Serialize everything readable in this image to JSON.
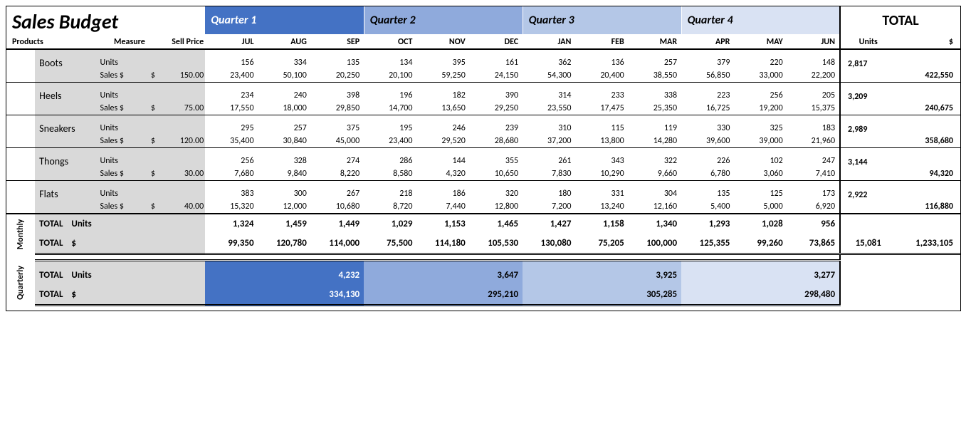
{
  "title": "Sales Budget",
  "headers": {
    "products": "Products",
    "measure": "Measure",
    "sellPrice": "Sell Price",
    "total": "TOTAL",
    "units": "Units",
    "dollar": "$"
  },
  "measures": {
    "units": "Units",
    "sales": "Sales $"
  },
  "quarters": [
    {
      "label": "Quarter 1",
      "bg": "#4472c4",
      "fg": "#ffffff"
    },
    {
      "label": "Quarter 2",
      "bg": "#8faadc",
      "fg": "#000000"
    },
    {
      "label": "Quarter 3",
      "bg": "#b4c7e7",
      "fg": "#000000"
    },
    {
      "label": "Quarter 4",
      "bg": "#d9e2f3",
      "fg": "#000000"
    }
  ],
  "months": [
    "JUL",
    "AUG",
    "SEP",
    "OCT",
    "NOV",
    "DEC",
    "JAN",
    "FEB",
    "MAR",
    "APR",
    "MAY",
    "JUN"
  ],
  "products": [
    {
      "name": "Boots",
      "price": "150.00",
      "units": [
        "156",
        "334",
        "135",
        "134",
        "395",
        "161",
        "362",
        "136",
        "257",
        "379",
        "220",
        "148"
      ],
      "sales": [
        "23,400",
        "50,100",
        "20,250",
        "20,100",
        "59,250",
        "24,150",
        "54,300",
        "20,400",
        "38,550",
        "56,850",
        "33,000",
        "22,200"
      ],
      "totUnits": "2,817",
      "totSales": "422,550"
    },
    {
      "name": "Heels",
      "price": "75.00",
      "units": [
        "234",
        "240",
        "398",
        "196",
        "182",
        "390",
        "314",
        "233",
        "338",
        "223",
        "256",
        "205"
      ],
      "sales": [
        "17,550",
        "18,000",
        "29,850",
        "14,700",
        "13,650",
        "29,250",
        "23,550",
        "17,475",
        "25,350",
        "16,725",
        "19,200",
        "15,375"
      ],
      "totUnits": "3,209",
      "totSales": "240,675"
    },
    {
      "name": "Sneakers",
      "price": "120.00",
      "units": [
        "295",
        "257",
        "375",
        "195",
        "246",
        "239",
        "310",
        "115",
        "119",
        "330",
        "325",
        "183"
      ],
      "sales": [
        "35,400",
        "30,840",
        "45,000",
        "23,400",
        "29,520",
        "28,680",
        "37,200",
        "13,800",
        "14,280",
        "39,600",
        "39,000",
        "21,960"
      ],
      "totUnits": "2,989",
      "totSales": "358,680"
    },
    {
      "name": "Thongs",
      "price": "30.00",
      "units": [
        "256",
        "328",
        "274",
        "286",
        "144",
        "355",
        "261",
        "343",
        "322",
        "226",
        "102",
        "247"
      ],
      "sales": [
        "7,680",
        "9,840",
        "8,220",
        "8,580",
        "4,320",
        "10,650",
        "7,830",
        "10,290",
        "9,660",
        "6,780",
        "3,060",
        "7,410"
      ],
      "totUnits": "3,144",
      "totSales": "94,320"
    },
    {
      "name": "Flats",
      "price": "40.00",
      "units": [
        "383",
        "300",
        "267",
        "218",
        "186",
        "320",
        "180",
        "331",
        "304",
        "135",
        "125",
        "173"
      ],
      "sales": [
        "15,320",
        "12,000",
        "10,680",
        "8,720",
        "7,440",
        "12,800",
        "7,200",
        "13,240",
        "12,160",
        "5,400",
        "5,000",
        "6,920"
      ],
      "totUnits": "2,922",
      "totSales": "116,880"
    }
  ],
  "monthly": {
    "labelV": "Monthly",
    "totalLabel": "TOTAL",
    "unitsLabel": "Units",
    "dollarLabel": "$",
    "units": [
      "1,324",
      "1,459",
      "1,449",
      "1,029",
      "1,153",
      "1,465",
      "1,427",
      "1,158",
      "1,340",
      "1,293",
      "1,028",
      "956"
    ],
    "sales": [
      "99,350",
      "120,780",
      "114,000",
      "75,500",
      "114,180",
      "105,530",
      "130,080",
      "75,205",
      "100,000",
      "125,355",
      "99,260",
      "73,865"
    ],
    "grandUnits": "15,081",
    "grandSales": "1,233,105"
  },
  "quarterly": {
    "labelV": "Quarterly",
    "totalLabel": "TOTAL",
    "unitsLabel": "Units",
    "dollarLabel": "$",
    "units": [
      "4,232",
      "3,647",
      "3,925",
      "3,277"
    ],
    "sales": [
      "334,130",
      "295,210",
      "305,285",
      "298,480"
    ]
  }
}
